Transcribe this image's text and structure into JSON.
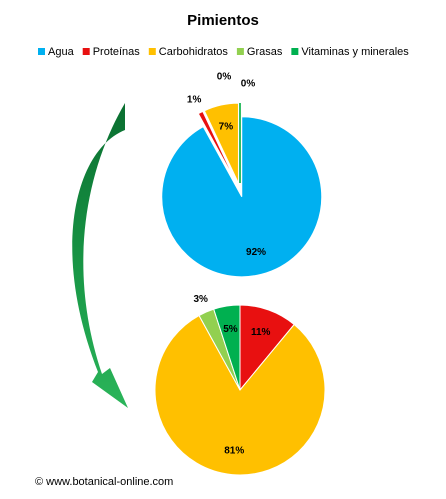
{
  "chart_data": [
    {
      "type": "pie",
      "title": "Pimientos",
      "categories": [
        "Agua",
        "Proteínas",
        "Carbohidratos",
        "Grasas",
        "Vitaminas y minerales"
      ],
      "colors": [
        "#00b0f0",
        "#e81010",
        "#ffc000",
        "#92d050",
        "#00b050"
      ],
      "values": [
        92,
        1,
        7,
        0,
        0
      ],
      "value_labels": [
        "92%",
        "1%",
        "7%",
        "0%",
        "0%"
      ],
      "legend": "top"
    },
    {
      "type": "pie",
      "categories": [
        "Proteínas",
        "Carbohidratos",
        "Grasas",
        "Vitaminas y minerales"
      ],
      "colors": [
        "#e81010",
        "#ffc000",
        "#92d050",
        "#00b050"
      ],
      "values": [
        11,
        81,
        3,
        5
      ],
      "value_labels": [
        "11%",
        "81%",
        "3%",
        "5%"
      ]
    }
  ],
  "footer": "© www.botanical-online.com"
}
